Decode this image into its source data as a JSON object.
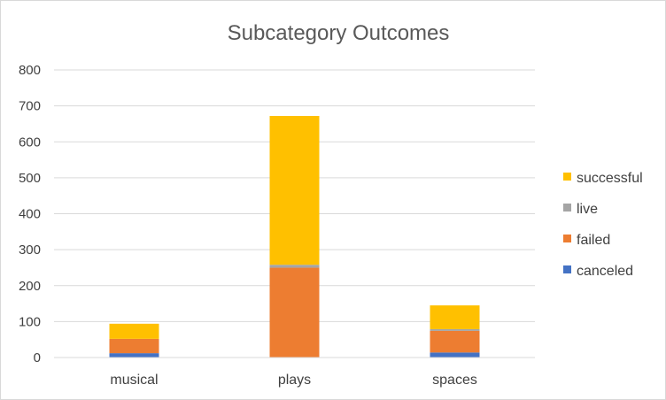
{
  "chart_data": {
    "type": "bar",
    "stacked": true,
    "title": "Subcategory Outcomes",
    "xlabel": "",
    "ylabel": "",
    "categories": [
      "musical",
      "plays",
      "spaces"
    ],
    "ylim": [
      0,
      800
    ],
    "yticks": [
      0,
      100,
      200,
      300,
      400,
      500,
      600,
      700,
      800
    ],
    "grid": true,
    "legend_position": "right",
    "series": [
      {
        "name": "canceled",
        "color": "#4472C4",
        "values": [
          12,
          0,
          14
        ]
      },
      {
        "name": "failed",
        "color": "#ED7D31",
        "values": [
          40,
          250,
          60
        ]
      },
      {
        "name": "live",
        "color": "#A5A5A5",
        "values": [
          0,
          8,
          5
        ]
      },
      {
        "name": "successful",
        "color": "#FFC000",
        "values": [
          42,
          414,
          66
        ]
      }
    ]
  }
}
